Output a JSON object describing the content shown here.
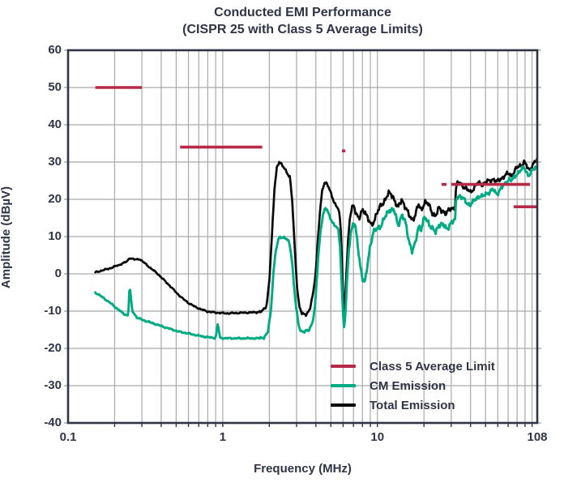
{
  "title": {
    "line1": "Conducted EMI Performance",
    "line2": "(CISPR 25 with Class 5 Average Limits)"
  },
  "legend": {
    "items": [
      {
        "label": "Class 5 Average Limit",
        "color": "#b62a47"
      },
      {
        "label": "CM Emission",
        "color": "#00ab83"
      },
      {
        "label": "Total Emission",
        "color": "#0b0b0b"
      }
    ]
  },
  "colors": {
    "text": "#2f3447",
    "grid": "#a9a9a9",
    "border": "#2f3447",
    "limit": "#b62a47",
    "cm": "#00ab83",
    "total": "#0b0b0b"
  },
  "chart_data": {
    "type": "line",
    "title": "Conducted EMI Performance (CISPR 25 with Class 5 Average Limits)",
    "grid": true,
    "legend_position": "inside-bottom-right",
    "x_axis": {
      "label": "Frequency (MHz)",
      "scale": "log",
      "min": 0.1,
      "max": 108,
      "major_ticks": [
        0.1,
        1,
        10,
        108
      ],
      "tick_labels": [
        "0.1",
        "1",
        "10",
        "108"
      ],
      "minor_gridlines": [
        0.2,
        0.3,
        0.4,
        0.5,
        0.6,
        0.7,
        0.8,
        0.9,
        1,
        2,
        3,
        4,
        5,
        6,
        7,
        8,
        9,
        10,
        20,
        30,
        40,
        50,
        60,
        70,
        80,
        90,
        100
      ]
    },
    "y_axis": {
      "label": "Amplitude (dBµV)",
      "min": -40,
      "max": 60,
      "tick_step": 10,
      "tick_values": [
        60,
        50,
        40,
        30,
        20,
        10,
        0,
        -10,
        -20,
        -30,
        -40
      ],
      "tick_labels": [
        "60",
        "50",
        "40",
        "30",
        "20",
        "10",
        "0",
        "-10",
        "-20",
        "-30",
        "-40"
      ]
    },
    "series": [
      {
        "name": "Class 5 Average Limit",
        "style": "segments",
        "color": "#b62a47",
        "units": "dBµV over MHz",
        "segments": [
          {
            "f_start": 0.15,
            "f_end": 0.3,
            "level": 50
          },
          {
            "f_start": 0.53,
            "f_end": 1.8,
            "level": 34
          },
          {
            "f_start": 5.9,
            "f_end": 6.2,
            "level": 33
          },
          {
            "f_start": 26,
            "f_end": 28,
            "level": 24
          },
          {
            "f_start": 30,
            "f_end": 97,
            "level": 24
          },
          {
            "f_start": 76,
            "f_end": 108,
            "level": 18
          }
        ]
      },
      {
        "name": "CM Emission",
        "style": "line",
        "color": "#00ab83",
        "points": [
          [
            0.15,
            -5.0
          ],
          [
            0.17,
            -6.5
          ],
          [
            0.19,
            -8.0
          ],
          [
            0.21,
            -9.5
          ],
          [
            0.23,
            -10.8
          ],
          [
            0.245,
            -11.2
          ],
          [
            0.25,
            -3.0
          ],
          [
            0.26,
            -10.0
          ],
          [
            0.28,
            -11.8
          ],
          [
            0.31,
            -12.5
          ],
          [
            0.35,
            -13.2
          ],
          [
            0.4,
            -14.0
          ],
          [
            0.46,
            -14.8
          ],
          [
            0.52,
            -15.5
          ],
          [
            0.6,
            -16.0
          ],
          [
            0.7,
            -16.6
          ],
          [
            0.8,
            -17.0
          ],
          [
            0.9,
            -17.2
          ],
          [
            0.93,
            -13.3
          ],
          [
            0.96,
            -17.2
          ],
          [
            1.1,
            -17.3
          ],
          [
            1.3,
            -17.3
          ],
          [
            1.5,
            -17.3
          ],
          [
            1.7,
            -17.3
          ],
          [
            1.85,
            -17.0
          ],
          [
            1.95,
            -16.0
          ],
          [
            2.05,
            -10.0
          ],
          [
            2.12,
            0.0
          ],
          [
            2.2,
            6.0
          ],
          [
            2.3,
            9.5
          ],
          [
            2.4,
            10.0
          ],
          [
            2.5,
            9.7
          ],
          [
            2.6,
            9.2
          ],
          [
            2.7,
            8.2
          ],
          [
            2.8,
            4.0
          ],
          [
            2.9,
            -4.0
          ],
          [
            3.0,
            -10.0
          ],
          [
            3.1,
            -14.0
          ],
          [
            3.2,
            -15.3
          ],
          [
            3.4,
            -15.5
          ],
          [
            3.6,
            -15.2
          ],
          [
            3.8,
            -13.0
          ],
          [
            3.95,
            -9.0
          ],
          [
            4.05,
            -2.0
          ],
          [
            4.15,
            5.0
          ],
          [
            4.3,
            12.0
          ],
          [
            4.45,
            16.0
          ],
          [
            4.6,
            17.5
          ],
          [
            4.75,
            17.0
          ],
          [
            4.9,
            15.5
          ],
          [
            5.05,
            14.5
          ],
          [
            5.25,
            13.0
          ],
          [
            5.45,
            12.5
          ],
          [
            5.6,
            11.5
          ],
          [
            5.75,
            7.0
          ],
          [
            5.88,
            -3.0
          ],
          [
            6.0,
            -11.0
          ],
          [
            6.1,
            -14.8
          ],
          [
            6.25,
            -9.0
          ],
          [
            6.4,
            0.0
          ],
          [
            6.55,
            7.0
          ],
          [
            6.75,
            11.5
          ],
          [
            6.95,
            13.5
          ],
          [
            7.15,
            13.0
          ],
          [
            7.4,
            9.0
          ],
          [
            7.7,
            3.0
          ],
          [
            8.0,
            -1.0
          ],
          [
            8.3,
            -2.8
          ],
          [
            8.6,
            2.0
          ],
          [
            9.0,
            8.0
          ],
          [
            9.4,
            11.0
          ],
          [
            9.9,
            12.0
          ],
          [
            10.5,
            13.0
          ],
          [
            11.2,
            15.0
          ],
          [
            12.0,
            17.5
          ],
          [
            12.8,
            17.0
          ],
          [
            13.6,
            13.0
          ],
          [
            14.4,
            16.0
          ],
          [
            15.2,
            13.5
          ],
          [
            16.0,
            9.0
          ],
          [
            16.8,
            6.0
          ],
          [
            17.6,
            8.0
          ],
          [
            18.4,
            13.0
          ],
          [
            19.2,
            12.0
          ],
          [
            20.2,
            15.0
          ],
          [
            21.4,
            14.0
          ],
          [
            22.6,
            12.0
          ],
          [
            23.8,
            11.0
          ],
          [
            25.0,
            13.5
          ],
          [
            26.5,
            13.0
          ],
          [
            28.0,
            12.0
          ],
          [
            29.5,
            13.5
          ],
          [
            31.0,
            14.0
          ],
          [
            31.8,
            14.5
          ],
          [
            32.3,
            20.5
          ],
          [
            34.0,
            21.0
          ],
          [
            36.0,
            20.0
          ],
          [
            38.0,
            19.0
          ],
          [
            40.0,
            18.5
          ],
          [
            42.0,
            19.5
          ],
          [
            44.0,
            20.5
          ],
          [
            46.0,
            21.0
          ],
          [
            48.0,
            20.5
          ],
          [
            50.0,
            21.5
          ],
          [
            53.0,
            22.0
          ],
          [
            56.0,
            22.5
          ],
          [
            59.0,
            21.5
          ],
          [
            62.0,
            22.5
          ],
          [
            65.0,
            23.5
          ],
          [
            68.0,
            24.5
          ],
          [
            71.0,
            25.5
          ],
          [
            74.0,
            25.0
          ],
          [
            77.0,
            26.0
          ],
          [
            80.0,
            27.0
          ],
          [
            83.0,
            27.5
          ],
          [
            86.0,
            28.0
          ],
          [
            89.0,
            28.5
          ],
          [
            92.0,
            27.5
          ],
          [
            95.0,
            26.3
          ],
          [
            98.0,
            27.0
          ],
          [
            101.0,
            27.8
          ],
          [
            104.0,
            28.5
          ],
          [
            108.0,
            28.8
          ]
        ]
      },
      {
        "name": "Total Emission",
        "style": "line",
        "color": "#0b0b0b",
        "points": [
          [
            0.15,
            0.4
          ],
          [
            0.19,
            1.6
          ],
          [
            0.22,
            2.6
          ],
          [
            0.24,
            3.3
          ],
          [
            0.25,
            4.3
          ],
          [
            0.27,
            3.8
          ],
          [
            0.29,
            4.0
          ],
          [
            0.31,
            3.0
          ],
          [
            0.34,
            1.6
          ],
          [
            0.38,
            0.0
          ],
          [
            0.42,
            -1.8
          ],
          [
            0.46,
            -3.4
          ],
          [
            0.5,
            -5.0
          ],
          [
            0.55,
            -6.6
          ],
          [
            0.6,
            -7.8
          ],
          [
            0.66,
            -8.8
          ],
          [
            0.72,
            -9.5
          ],
          [
            0.8,
            -10.1
          ],
          [
            0.9,
            -10.4
          ],
          [
            1.05,
            -10.6
          ],
          [
            1.25,
            -10.5
          ],
          [
            1.45,
            -10.4
          ],
          [
            1.65,
            -10.3
          ],
          [
            1.8,
            -10.1
          ],
          [
            1.92,
            -8.5
          ],
          [
            2.0,
            -2.0
          ],
          [
            2.08,
            10.0
          ],
          [
            2.16,
            23.0
          ],
          [
            2.24,
            28.8
          ],
          [
            2.32,
            30.0
          ],
          [
            2.42,
            29.0
          ],
          [
            2.52,
            28.3
          ],
          [
            2.62,
            27.0
          ],
          [
            2.72,
            25.8
          ],
          [
            2.82,
            19.0
          ],
          [
            2.92,
            7.0
          ],
          [
            3.02,
            -3.0
          ],
          [
            3.12,
            -8.8
          ],
          [
            3.25,
            -10.7
          ],
          [
            3.45,
            -10.8
          ],
          [
            3.65,
            -9.8
          ],
          [
            3.85,
            -5.0
          ],
          [
            4.0,
            1.0
          ],
          [
            4.12,
            9.0
          ],
          [
            4.26,
            17.0
          ],
          [
            4.4,
            22.3
          ],
          [
            4.55,
            24.6
          ],
          [
            4.72,
            24.3
          ],
          [
            4.88,
            22.8
          ],
          [
            5.05,
            21.0
          ],
          [
            5.25,
            19.3
          ],
          [
            5.45,
            18.2
          ],
          [
            5.62,
            17.3
          ],
          [
            5.78,
            13.0
          ],
          [
            5.92,
            2.0
          ],
          [
            6.02,
            -8.0
          ],
          [
            6.08,
            -10.8
          ],
          [
            6.2,
            -6.0
          ],
          [
            6.32,
            2.0
          ],
          [
            6.45,
            8.0
          ],
          [
            6.6,
            13.5
          ],
          [
            6.8,
            17.5
          ],
          [
            7.0,
            18.6
          ],
          [
            7.3,
            16.5
          ],
          [
            7.6,
            14.2
          ],
          [
            7.9,
            16.8
          ],
          [
            8.3,
            17.2
          ],
          [
            8.7,
            14.5
          ],
          [
            9.2,
            12.8
          ],
          [
            9.7,
            15.5
          ],
          [
            10.3,
            17.5
          ],
          [
            11.0,
            19.5
          ],
          [
            11.8,
            21.5
          ],
          [
            12.6,
            21.0
          ],
          [
            13.6,
            17.5
          ],
          [
            14.4,
            20.0
          ],
          [
            15.2,
            18.0
          ],
          [
            16.0,
            15.5
          ],
          [
            16.8,
            14.5
          ],
          [
            17.6,
            16.0
          ],
          [
            18.4,
            18.5
          ],
          [
            19.2,
            17.0
          ],
          [
            20.2,
            19.5
          ],
          [
            21.4,
            18.5
          ],
          [
            22.6,
            16.5
          ],
          [
            23.8,
            15.5
          ],
          [
            25.0,
            17.5
          ],
          [
            26.5,
            17.0
          ],
          [
            28.0,
            16.0
          ],
          [
            29.5,
            17.5
          ],
          [
            31.0,
            17.8
          ],
          [
            31.8,
            18.0
          ],
          [
            32.3,
            23.8
          ],
          [
            34.0,
            24.5
          ],
          [
            36.0,
            23.5
          ],
          [
            38.0,
            22.5
          ],
          [
            40.0,
            22.0
          ],
          [
            42.0,
            23.0
          ],
          [
            44.0,
            24.0
          ],
          [
            46.0,
            24.5
          ],
          [
            48.0,
            24.0
          ],
          [
            50.0,
            24.5
          ],
          [
            53.0,
            25.0
          ],
          [
            56.0,
            25.5
          ],
          [
            59.0,
            24.5
          ],
          [
            62.0,
            25.5
          ],
          [
            65.0,
            26.0
          ],
          [
            68.0,
            26.5
          ],
          [
            71.0,
            27.0
          ],
          [
            74.0,
            26.3
          ],
          [
            77.0,
            27.5
          ],
          [
            80.0,
            28.5
          ],
          [
            83.0,
            29.0
          ],
          [
            86.0,
            29.5
          ],
          [
            89.0,
            30.0
          ],
          [
            92.0,
            29.0
          ],
          [
            95.0,
            27.8
          ],
          [
            98.0,
            28.5
          ],
          [
            101.0,
            29.3
          ],
          [
            104.0,
            30.0
          ],
          [
            108.0,
            30.4
          ]
        ]
      }
    ]
  }
}
